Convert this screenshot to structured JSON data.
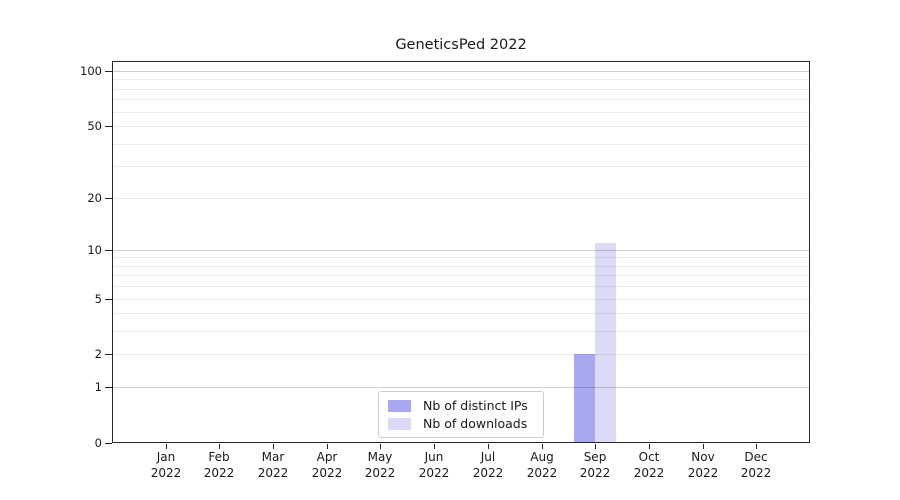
{
  "chart_data": {
    "type": "bar",
    "title": "GeneticsPed 2022",
    "categories": [
      "Jan",
      "Feb",
      "Mar",
      "Apr",
      "May",
      "Jun",
      "Jul",
      "Aug",
      "Sep",
      "Oct",
      "Nov",
      "Dec"
    ],
    "category_year": "2022",
    "series": [
      {
        "name": "Nb of distinct IPs",
        "color": "#a8a8f0",
        "values": [
          0,
          0,
          0,
          0,
          0,
          0,
          0,
          0,
          2,
          0,
          0,
          0
        ]
      },
      {
        "name": "Nb of downloads",
        "color": "#dbdbf7",
        "values": [
          0,
          0,
          0,
          0,
          0,
          0,
          0,
          0,
          11,
          0,
          0,
          0
        ]
      }
    ],
    "xlabel": "",
    "ylabel": "",
    "y_axis": {
      "scale": "log1p",
      "major_ticks": [
        0,
        1,
        2,
        5,
        10,
        20,
        50,
        100
      ],
      "decade_lines": [
        1,
        10,
        100
      ],
      "minor_gridlines": [
        3,
        4,
        6,
        7,
        8,
        9,
        30,
        40,
        60,
        70,
        80,
        90
      ],
      "ymax": 113
    },
    "legend": {
      "position": "bottom-center",
      "entries": [
        "Nb of distinct IPs",
        "Nb of downloads"
      ]
    },
    "grid": true
  },
  "colors": {
    "spine": "#262626",
    "grid_decade": "rgba(0,0,0,0.19)",
    "grid_minor": "rgba(0,0,0,0.08)",
    "text": "#1a1a1a",
    "legend_border": "#cccccc",
    "background": "#ffffff"
  }
}
